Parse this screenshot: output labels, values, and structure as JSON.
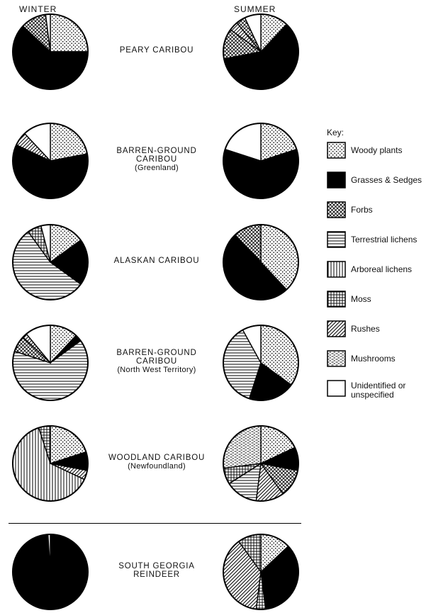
{
  "headers": {
    "winter": "WINTER",
    "summer": "SUMMER"
  },
  "key": {
    "title": "Key:",
    "items": [
      {
        "id": "woody",
        "label": "Woody plants",
        "pattern": "dots"
      },
      {
        "id": "grass",
        "label": "Grasses & Sedges",
        "pattern": "solid"
      },
      {
        "id": "forbs",
        "label": "Forbs",
        "pattern": "crosshatch"
      },
      {
        "id": "tlich",
        "label": "Terrestrial lichens",
        "pattern": "hlines"
      },
      {
        "id": "alich",
        "label": "Arboreal lichens",
        "pattern": "vlines"
      },
      {
        "id": "moss",
        "label": "Moss",
        "pattern": "grid"
      },
      {
        "id": "rush",
        "label": "Rushes",
        "pattern": "diagonal"
      },
      {
        "id": "mush",
        "label": "Mushrooms",
        "pattern": "dashes"
      },
      {
        "id": "unid",
        "label": "Unidentified or unspecified",
        "pattern": "white"
      }
    ]
  },
  "chart_data": {
    "type": "pie",
    "unit": "fraction of diet",
    "categories": [
      "Woody plants",
      "Grasses & Sedges",
      "Forbs",
      "Terrestrial lichens",
      "Arboreal lichens",
      "Moss",
      "Rushes",
      "Mushrooms",
      "Unidentified or unspecified"
    ],
    "rows": [
      {
        "name": "PEARY CARIBOU",
        "sub": "",
        "winter": [
          [
            "woody",
            0.25
          ],
          [
            "grass",
            0.62
          ],
          [
            "forbs",
            0.11
          ],
          [
            "unid",
            0.02
          ]
        ],
        "summer": [
          [
            "woody",
            0.12
          ],
          [
            "grass",
            0.6
          ],
          [
            "forbs",
            0.13
          ],
          [
            "rush",
            0.04
          ],
          [
            "forbs",
            0.04
          ],
          [
            "unid",
            0.07
          ]
        ]
      },
      {
        "name": "BARREN-GROUND CARIBOU",
        "sub": "(Greenland)",
        "winter": [
          [
            "woody",
            0.22
          ],
          [
            "grass",
            0.6
          ],
          [
            "rush",
            0.06
          ],
          [
            "unid",
            0.12
          ]
        ],
        "summer": [
          [
            "woody",
            0.2
          ],
          [
            "grass",
            0.6
          ],
          [
            "unid",
            0.2
          ]
        ]
      },
      {
        "name": "ALASKAN CARIBOU",
        "sub": "",
        "winter": [
          [
            "woody",
            0.15
          ],
          [
            "grass",
            0.2
          ],
          [
            "tlich",
            0.55
          ],
          [
            "moss",
            0.06
          ],
          [
            "unid",
            0.04
          ]
        ],
        "summer": [
          [
            "woody",
            0.38
          ],
          [
            "grass",
            0.5
          ],
          [
            "forbs",
            0.12
          ]
        ]
      },
      {
        "name": "BARREN-GROUND CARIBOU",
        "sub": "(North West Territory)",
        "winter": [
          [
            "woody",
            0.12
          ],
          [
            "grass",
            0.03
          ],
          [
            "tlich",
            0.65
          ],
          [
            "forbs",
            0.07
          ],
          [
            "rush",
            0.02
          ],
          [
            "unid",
            0.11
          ]
        ],
        "summer": [
          [
            "woody",
            0.35
          ],
          [
            "grass",
            0.2
          ],
          [
            "tlich",
            0.37
          ],
          [
            "unid",
            0.08
          ]
        ]
      },
      {
        "name": "WOODLAND CARIBOU",
        "sub": "(Newfoundland)",
        "winter": [
          [
            "woody",
            0.2
          ],
          [
            "grass",
            0.08
          ],
          [
            "rush",
            0.04
          ],
          [
            "alich",
            0.63
          ],
          [
            "moss",
            0.05
          ]
        ],
        "summer": [
          [
            "woody",
            0.18
          ],
          [
            "grass",
            0.1
          ],
          [
            "forbs",
            0.12
          ],
          [
            "rush",
            0.12
          ],
          [
            "tlich",
            0.14
          ],
          [
            "moss",
            0.07
          ],
          [
            "mush",
            0.27
          ]
        ]
      },
      {
        "name": "SOUTH GEORGIA REINDEER",
        "sub": "",
        "winter": [
          [
            "grass",
            0.99
          ],
          [
            "unid",
            0.01
          ]
        ],
        "summer": [
          [
            "woody",
            0.13
          ],
          [
            "grass",
            0.35
          ],
          [
            "moss",
            0.04
          ],
          [
            "rush",
            0.38
          ],
          [
            "moss",
            0.1
          ]
        ]
      }
    ]
  }
}
